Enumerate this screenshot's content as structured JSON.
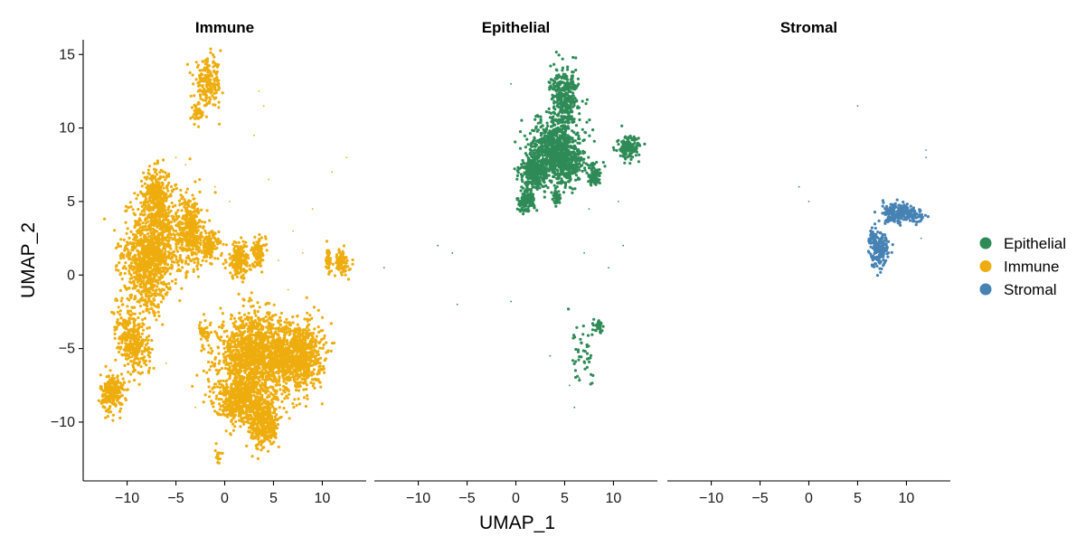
{
  "chart_data": {
    "type": "scatter",
    "xlabel": "UMAP_1",
    "ylabel": "UMAP_2",
    "xlim": [
      -14.5,
      14.5
    ],
    "ylim": [
      -14,
      16
    ],
    "x_ticks": [
      -10,
      -5,
      0,
      5,
      10
    ],
    "y_ticks": [
      -10,
      -5,
      0,
      5,
      10,
      15
    ],
    "x_tick_labels": [
      "−10",
      "−5",
      "0",
      "5",
      "10"
    ],
    "y_tick_labels": [
      "−10",
      "−5",
      "0",
      "5",
      "10",
      "15"
    ],
    "grid": false,
    "legend_position": "right",
    "legend": [
      {
        "label": "Epithelial",
        "color": "#2e8b57"
      },
      {
        "label": "Immune",
        "color": "#eead0e"
      },
      {
        "label": "Stromal",
        "color": "#4682b4"
      }
    ],
    "panels": [
      {
        "title": "Immune",
        "color": "#eead0e",
        "clusters": [
          {
            "cx": -7.5,
            "cy": 1.5,
            "rx": 2.6,
            "ry": 4.2,
            "rot": -15,
            "n": 1200
          },
          {
            "cx": -7.0,
            "cy": 5.5,
            "rx": 1.3,
            "ry": 1.8,
            "rot": 0,
            "n": 280
          },
          {
            "cx": -9.5,
            "cy": -4.5,
            "rx": 1.4,
            "ry": 2.2,
            "rot": 30,
            "n": 320
          },
          {
            "cx": -11.5,
            "cy": -8.0,
            "rx": 1.2,
            "ry": 1.3,
            "rot": 0,
            "n": 220
          },
          {
            "cx": -3.5,
            "cy": 3.0,
            "rx": 1.4,
            "ry": 2.4,
            "rot": 0,
            "n": 380
          },
          {
            "cx": -1.5,
            "cy": 2.0,
            "rx": 0.9,
            "ry": 1.0,
            "rot": 0,
            "n": 120
          },
          {
            "cx": 1.5,
            "cy": 1.0,
            "rx": 1.3,
            "ry": 1.2,
            "rot": 0,
            "n": 200
          },
          {
            "cx": 3.5,
            "cy": 1.6,
            "rx": 0.7,
            "ry": 0.9,
            "rot": 0,
            "n": 90
          },
          {
            "cx": -1.7,
            "cy": 13.0,
            "rx": 1.4,
            "ry": 1.6,
            "rot": 0,
            "n": 200
          },
          {
            "cx": -2.8,
            "cy": 11.0,
            "rx": 0.6,
            "ry": 0.7,
            "rot": 0,
            "n": 40
          },
          {
            "cx": 3.0,
            "cy": -5.5,
            "rx": 3.5,
            "ry": 2.8,
            "rot": 0,
            "n": 1400
          },
          {
            "cx": 7.5,
            "cy": -5.5,
            "rx": 2.5,
            "ry": 2.4,
            "rot": 0,
            "n": 800
          },
          {
            "cx": 1.5,
            "cy": -8.5,
            "rx": 2.5,
            "ry": 1.5,
            "rot": 0,
            "n": 500
          },
          {
            "cx": 4.0,
            "cy": -10.0,
            "rx": 1.6,
            "ry": 1.8,
            "rot": 0,
            "n": 380
          },
          {
            "cx": -2.0,
            "cy": -4.0,
            "rx": 0.6,
            "ry": 0.7,
            "rot": 0,
            "n": 45
          },
          {
            "cx": 12.0,
            "cy": 0.8,
            "rx": 0.7,
            "ry": 0.9,
            "rot": 0,
            "n": 90
          },
          {
            "cx": 10.6,
            "cy": 1.0,
            "rx": 0.3,
            "ry": 0.9,
            "rot": 0,
            "n": 40
          },
          {
            "cx": -0.7,
            "cy": -12.3,
            "rx": 0.3,
            "ry": 0.5,
            "rot": 0,
            "n": 18
          }
        ],
        "scatter_points": [
          [
            3.5,
            12.5
          ],
          [
            4.0,
            11.5
          ],
          [
            3.0,
            9.5
          ],
          [
            12.5,
            8.0
          ],
          [
            11.0,
            7.0
          ],
          [
            9.0,
            4.5
          ],
          [
            7.0,
            3.0
          ],
          [
            5.5,
            1.0
          ],
          [
            8.0,
            1.5
          ],
          [
            6.5,
            -1.0
          ],
          [
            -4.0,
            7.5
          ],
          [
            -5.0,
            8.0
          ],
          [
            -8.0,
            6.5
          ],
          [
            -6.0,
            -6.0
          ],
          [
            -3.0,
            -9.0
          ],
          [
            0.5,
            5.0
          ],
          [
            -1.0,
            6.0
          ],
          [
            4.5,
            6.5
          ]
        ]
      },
      {
        "title": "Epithelial",
        "color": "#2e8b57",
        "clusters": [
          {
            "cx": 5.0,
            "cy": 12.0,
            "rx": 1.4,
            "ry": 2.0,
            "rot": 0,
            "n": 350
          },
          {
            "cx": 4.0,
            "cy": 9.0,
            "rx": 2.5,
            "ry": 1.6,
            "rot": 0,
            "n": 520
          },
          {
            "cx": 2.0,
            "cy": 7.0,
            "rx": 1.6,
            "ry": 1.2,
            "rot": 0,
            "n": 330
          },
          {
            "cx": 5.0,
            "cy": 7.5,
            "rx": 2.0,
            "ry": 1.3,
            "rot": 0,
            "n": 380
          },
          {
            "cx": 1.0,
            "cy": 5.0,
            "rx": 0.9,
            "ry": 0.7,
            "rot": 0,
            "n": 130
          },
          {
            "cx": 8.0,
            "cy": 6.8,
            "rx": 0.7,
            "ry": 0.7,
            "rot": 0,
            "n": 90
          },
          {
            "cx": 4.2,
            "cy": 5.2,
            "rx": 0.4,
            "ry": 0.5,
            "rot": 0,
            "n": 40
          },
          {
            "cx": 11.5,
            "cy": 8.6,
            "rx": 1.1,
            "ry": 0.8,
            "rot": 0,
            "n": 140
          },
          {
            "cx": 8.5,
            "cy": -3.5,
            "rx": 0.4,
            "ry": 0.4,
            "rot": 0,
            "n": 40
          },
          {
            "cx": 7.0,
            "cy": -5.5,
            "rx": 1.5,
            "ry": 2.0,
            "rot": 0,
            "n": 45
          }
        ],
        "scatter_points": [
          [
            -0.5,
            13.0
          ],
          [
            9.5,
            0.5
          ],
          [
            11.0,
            2.0
          ],
          [
            7.0,
            1.5
          ],
          [
            -8.0,
            2.0
          ],
          [
            -13.5,
            0.5
          ],
          [
            -6.5,
            1.5
          ],
          [
            -6.0,
            -2.0
          ],
          [
            -0.5,
            -1.8
          ],
          [
            5.5,
            -7.5
          ],
          [
            6.0,
            -9.0
          ],
          [
            3.5,
            -5.5
          ],
          [
            10.5,
            5.0
          ],
          [
            7.5,
            4.5
          ],
          [
            6.5,
            -7.0
          ]
        ]
      },
      {
        "title": "Stromal",
        "color": "#4682b4",
        "clusters": [
          {
            "cx": 10.0,
            "cy": 4.2,
            "rx": 2.2,
            "ry": 0.5,
            "rot": -10,
            "n": 170
          },
          {
            "cx": 8.8,
            "cy": 4.0,
            "rx": 1.0,
            "ry": 0.5,
            "rot": 0,
            "n": 70
          },
          {
            "cx": 7.2,
            "cy": 1.8,
            "rx": 1.0,
            "ry": 1.2,
            "rot": 0,
            "n": 170
          },
          {
            "cx": 6.6,
            "cy": 2.5,
            "rx": 0.4,
            "ry": 0.6,
            "rot": 0,
            "n": 50
          }
        ],
        "scatter_points": [
          [
            5.0,
            11.5
          ],
          [
            -1.0,
            6.0
          ],
          [
            0.0,
            5.0
          ],
          [
            12.0,
            8.5
          ],
          [
            11.5,
            2.5
          ],
          [
            12.0,
            8.0
          ]
        ]
      }
    ]
  }
}
